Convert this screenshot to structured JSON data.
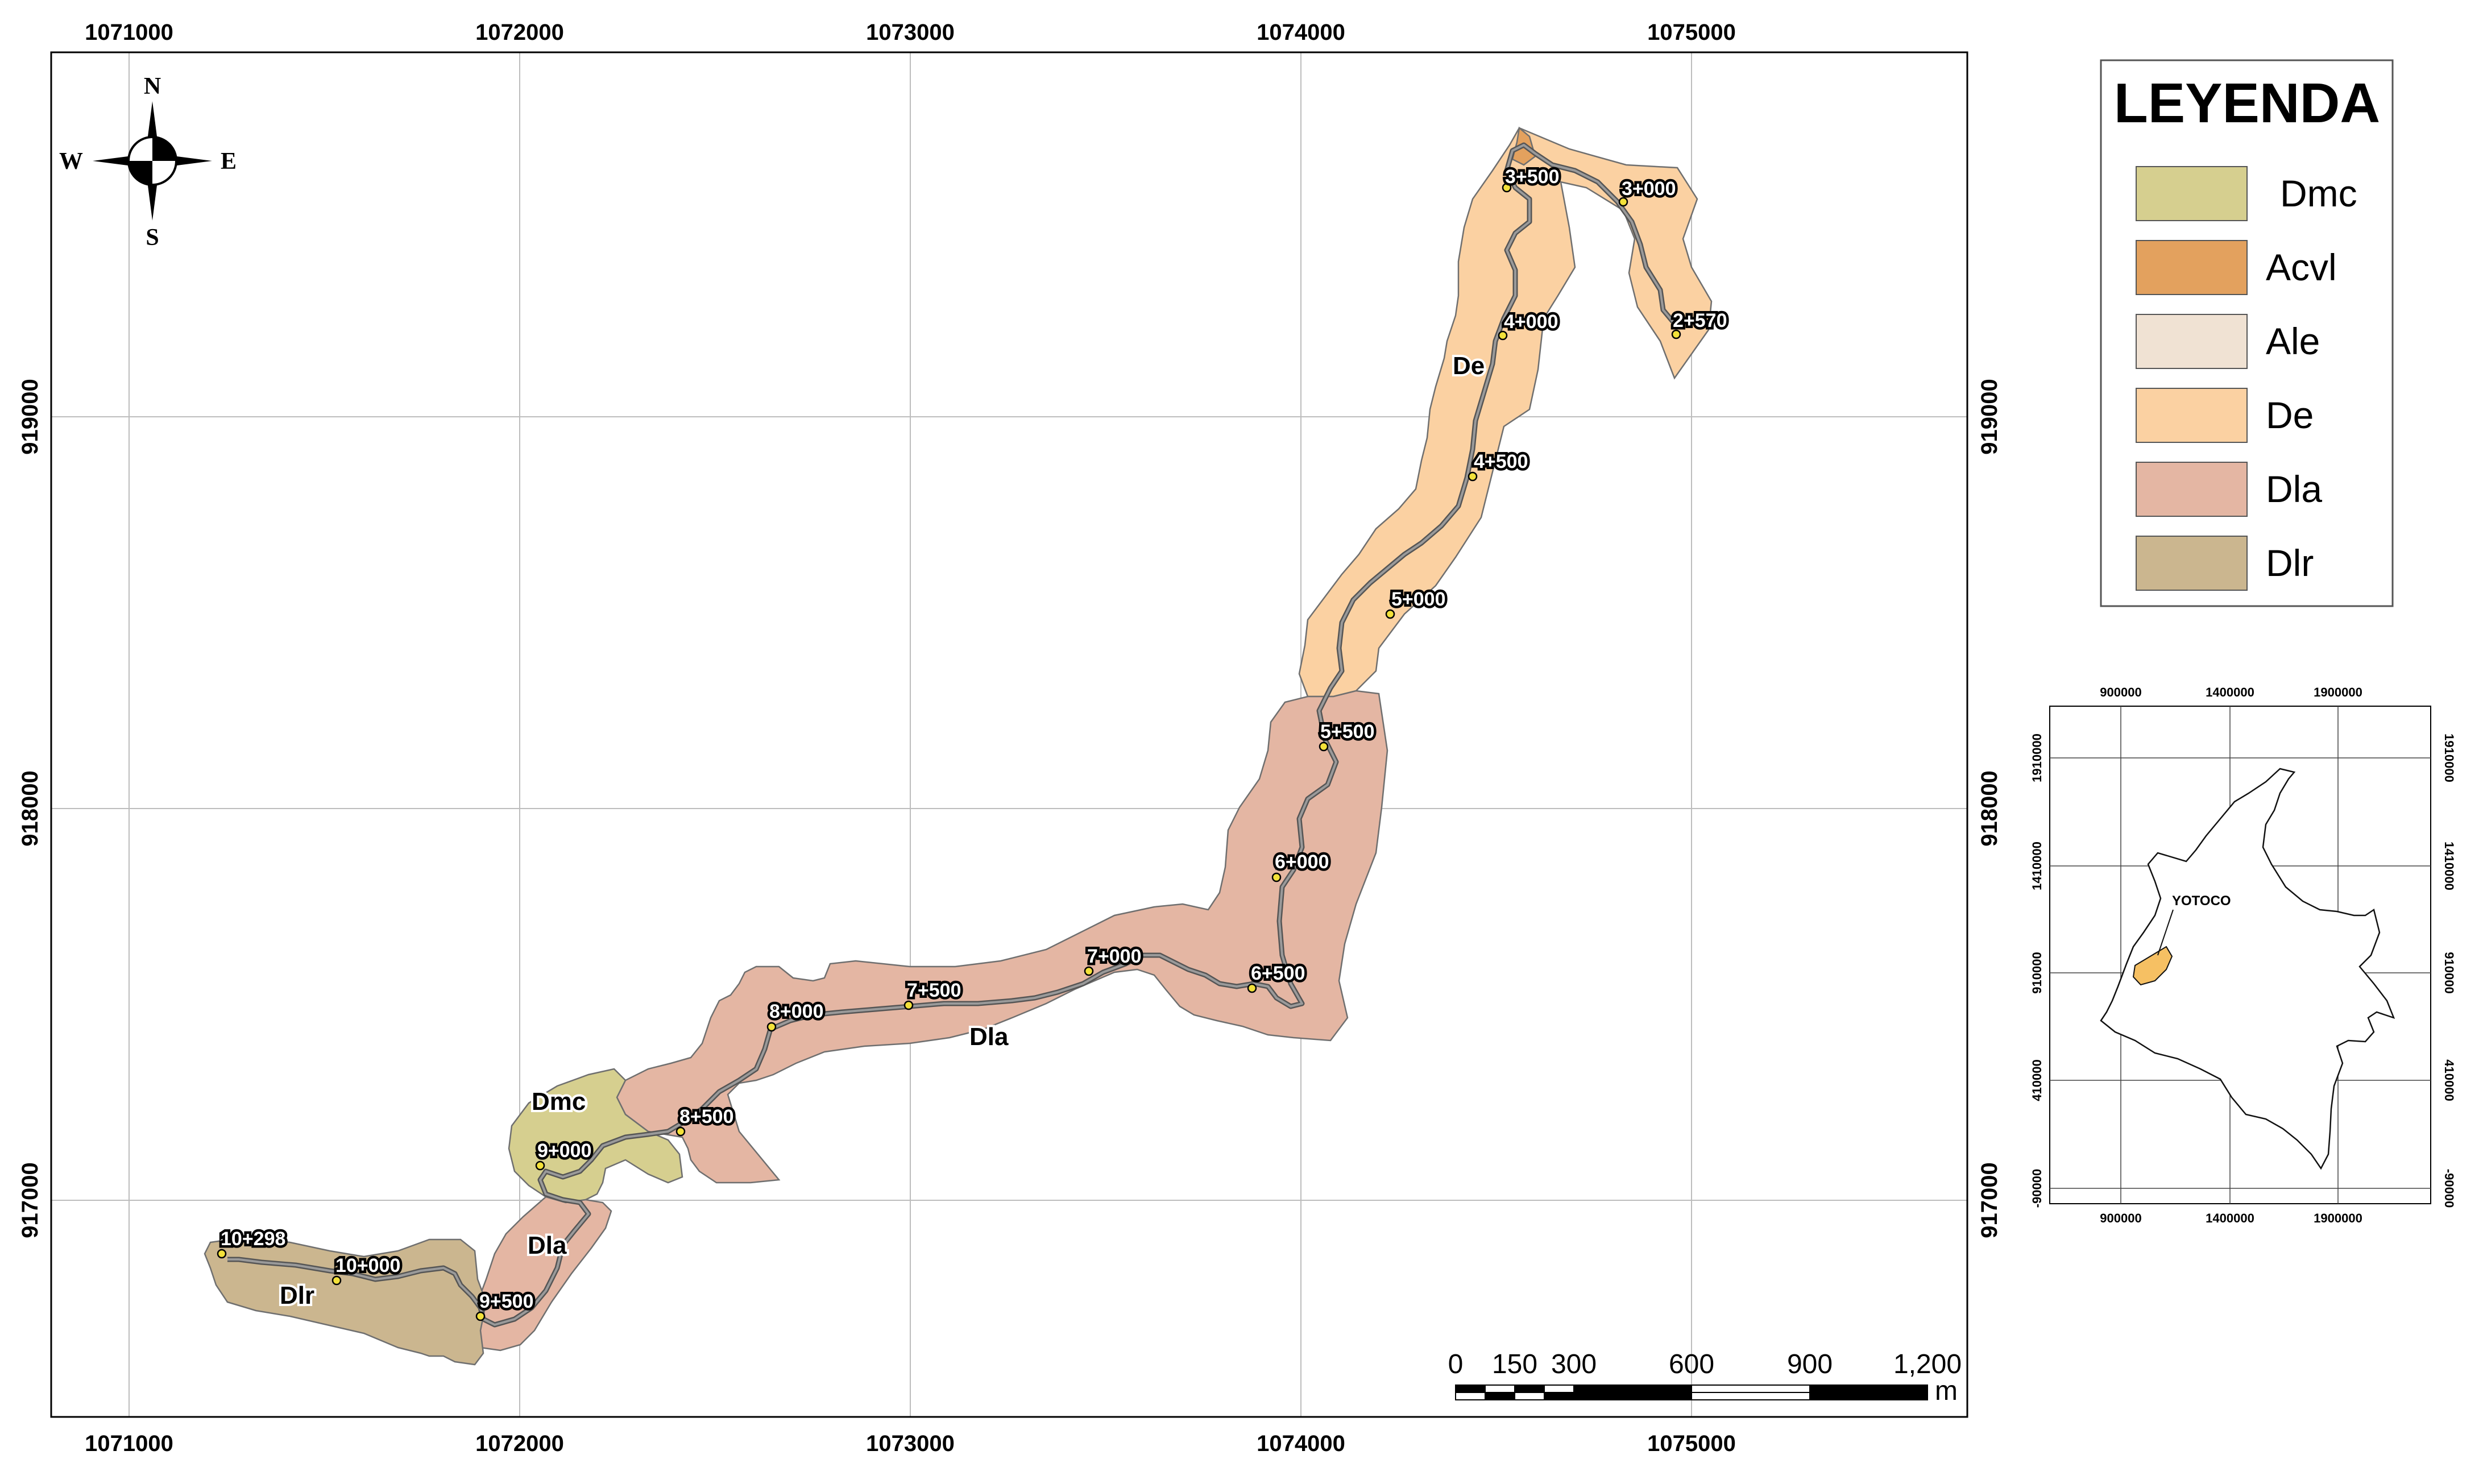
{
  "map": {
    "grid_x_labels": [
      "1071000",
      "1072000",
      "1073000",
      "1074000",
      "1075000"
    ],
    "grid_y_labels": [
      "919000",
      "918000",
      "917000"
    ],
    "zone_labels": [
      "De",
      "Dla",
      "Dmc",
      "Dla",
      "Dlr"
    ],
    "stations": [
      "3+500",
      "3+000",
      "4+000",
      "2+570",
      "4+500",
      "5+000",
      "5+500",
      "6+000",
      "7+000",
      "6+500",
      "7+500",
      "8+000",
      "8+500",
      "9+000",
      "10+298",
      "10+000",
      "9+500"
    ]
  },
  "compass": {
    "north": "N",
    "south": "S",
    "east": "E",
    "west": "W"
  },
  "legend": {
    "title": "LEYENDA",
    "items": [
      {
        "label": "Dmc",
        "color": "#d6cf8f"
      },
      {
        "label": "Acvl",
        "color": "#e3a15e"
      },
      {
        "label": "Ale",
        "color": "#f0e2d3"
      },
      {
        "label": "De",
        "color": "#fbd1a2"
      },
      {
        "label": "Dla",
        "color": "#e4b6a3"
      },
      {
        "label": "Dlr",
        "color": "#cbb68f"
      }
    ]
  },
  "scalebar": {
    "ticks": [
      "0",
      "150",
      "300",
      "600",
      "900",
      "1,200"
    ],
    "unit": "m"
  },
  "inset": {
    "x_labels": [
      "900000",
      "1400000",
      "1900000"
    ],
    "y_labels": [
      "1910000",
      "1410000",
      "910000",
      "410000",
      "-90000"
    ],
    "place_label": "YOTOCO",
    "highlight_color": "#f6c063"
  }
}
